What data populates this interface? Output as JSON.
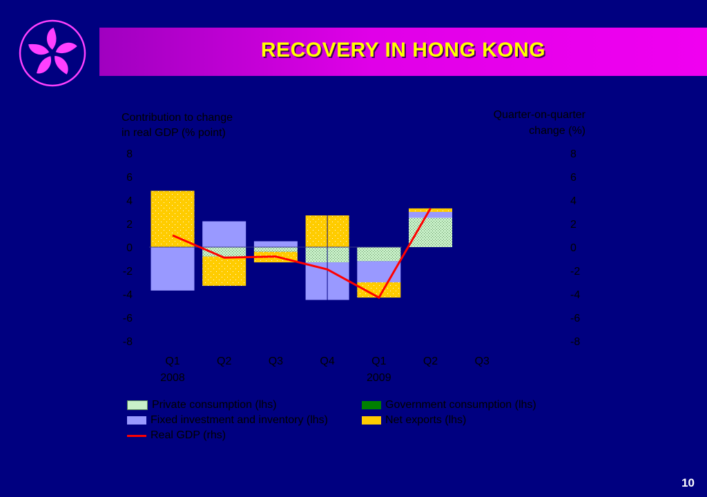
{
  "banner": {
    "title": "RECOVERY IN HONG KONG"
  },
  "page_number": "10",
  "colors": {
    "background": "#000080",
    "banner": "#e000e8",
    "title": "#ffff00",
    "private_consumption": "#c8f0c8",
    "government_consumption": "#008000",
    "fixed_investment": "#9999ff",
    "net_exports": "#ffcc00",
    "real_gdp": "#ff0000",
    "logo": "#ff40ff"
  },
  "chart_data": {
    "type": "bar",
    "stacked": true,
    "ylabel_left": [
      "Contribution to change",
      "in real GDP (% point)"
    ],
    "ylabel_right": [
      "Quarter-on-quarter",
      "change (%)"
    ],
    "ylim": [
      -8,
      8
    ],
    "yticks": [
      "8",
      "6",
      "4",
      "2",
      "0",
      "-2",
      "-4",
      "-6",
      "-8"
    ],
    "categories": [
      "Q1",
      "Q2",
      "Q3",
      "Q4",
      "Q1",
      "Q2",
      "Q3"
    ],
    "year_labels": [
      {
        "category_index": 0,
        "text": "2008"
      },
      {
        "category_index": 4,
        "text": "2009"
      }
    ],
    "series": [
      {
        "name": "Private consumption (lhs)",
        "key": "private_consumption",
        "kind": "bar",
        "values": [
          0,
          -0.8,
          -0.4,
          -1.3,
          -1.2,
          2.5,
          null
        ]
      },
      {
        "name": "Government consumption (lhs)",
        "key": "government_consumption",
        "kind": "bar",
        "values": [
          0,
          0,
          0,
          0,
          0,
          0,
          null
        ]
      },
      {
        "name": "Fixed investment and inventory (lhs)",
        "key": "fixed_investment",
        "kind": "bar",
        "values": [
          -3.7,
          2.2,
          0.5,
          -3.2,
          -1.8,
          0.5,
          null
        ]
      },
      {
        "name": "Net exports (lhs)",
        "key": "net_exports",
        "kind": "bar",
        "values": [
          4.8,
          -2.5,
          -0.9,
          2.7,
          -1.3,
          0.3,
          null
        ]
      },
      {
        "name": "Real GDP (rhs)",
        "key": "real_gdp",
        "kind": "line",
        "values": [
          1.0,
          -0.9,
          -0.8,
          -1.9,
          -4.3,
          3.3,
          null
        ]
      }
    ]
  }
}
